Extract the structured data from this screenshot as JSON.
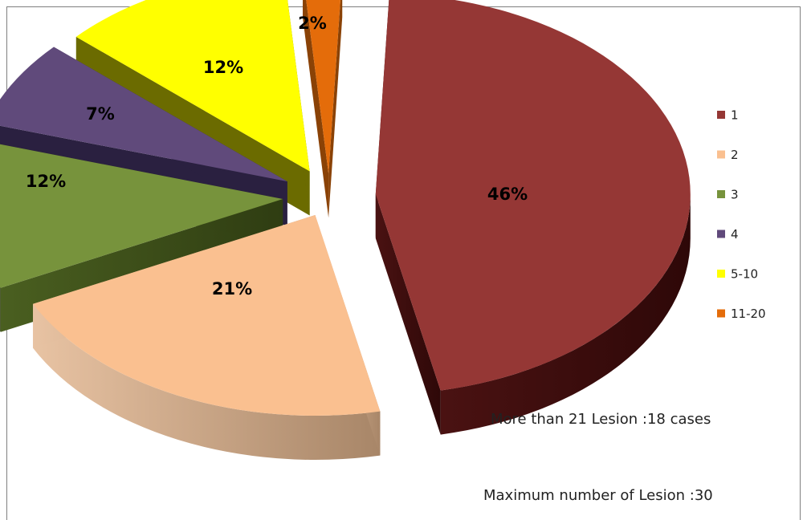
{
  "chart_data": {
    "type": "pie",
    "title": "",
    "exploded": true,
    "three_d": true,
    "legend_position": "right",
    "categories": [
      "1",
      "2",
      "3",
      "4",
      "5-10",
      "11-20"
    ],
    "values": [
      46,
      21,
      12,
      7,
      12,
      2
    ],
    "value_labels": [
      "46%",
      "21%",
      "12%",
      "7%",
      "12%",
      "2%"
    ],
    "colors": [
      "#953735",
      "#fac090",
      "#77933c",
      "#604a7b",
      "#ffff00",
      "#e46c0a"
    ],
    "annotations": [
      "More than 21 Lesion :18 cases",
      "Maximum number of Lesion :30"
    ]
  }
}
